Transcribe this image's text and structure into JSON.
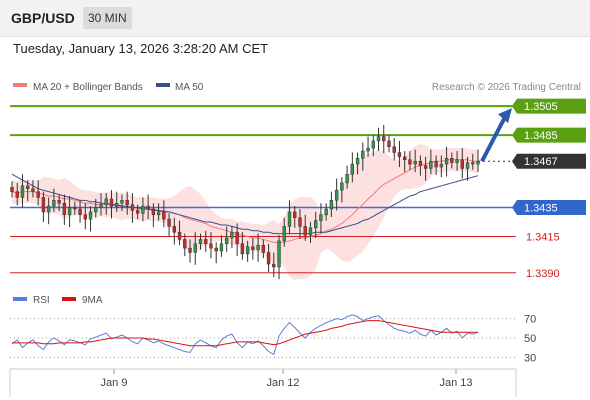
{
  "header": {
    "symbol": "GBP/USD",
    "timeframe": "30 MIN"
  },
  "timestamp": "Tuesday, January 13, 2026 3:28:20 AM CET",
  "copyright": "Research © 2026 Trading Central",
  "colors": {
    "resistance": "#5aa012",
    "support_line": "#3b6fd9",
    "support_label": "#3366cc",
    "target_red": "#d42020",
    "current_label": "#333333",
    "ma20": "#ef7b7b",
    "band_fill": "#fcd7d7",
    "ma50": "#3a4f8e",
    "up_candle": "#2e9b4b",
    "down_candle": "#cc2a2a",
    "rsi": "#5b7fd6",
    "rsi_ma": "#dd1111",
    "arrow": "#2d5aa8"
  },
  "chart_data": [
    {
      "type": "candlestick",
      "title": "GBP/USD",
      "legend": [
        "MA 20 + Bollinger Bands",
        "MA 50"
      ],
      "x_tick_labels": [
        "Jan 9",
        "Jan 12",
        "Jan 13"
      ],
      "y_range": [
        1.3385,
        1.3512
      ],
      "levels": [
        {
          "label": "1.3505",
          "value": 1.3505,
          "kind": "resistance"
        },
        {
          "label": "1.3485",
          "value": 1.3485,
          "kind": "resistance"
        },
        {
          "label": "1.3467",
          "value": 1.3467,
          "kind": "current"
        },
        {
          "label": "1.3435",
          "value": 1.3435,
          "kind": "support"
        },
        {
          "label": "1.3415",
          "value": 1.3415,
          "kind": "target"
        },
        {
          "label": "1.3390",
          "value": 1.339,
          "kind": "target"
        }
      ],
      "close": [
        1.3446,
        1.3442,
        1.345,
        1.3448,
        1.3446,
        1.3442,
        1.3432,
        1.3436,
        1.344,
        1.3438,
        1.343,
        1.3435,
        1.3434,
        1.343,
        1.3427,
        1.3432,
        1.3435,
        1.3437,
        1.3441,
        1.3436,
        1.3438,
        1.344,
        1.3437,
        1.3433,
        1.3431,
        1.3436,
        1.3434,
        1.343,
        1.3432,
        1.3427,
        1.3422,
        1.3418,
        1.3413,
        1.3407,
        1.3404,
        1.341,
        1.3413,
        1.341,
        1.3407,
        1.3405,
        1.341,
        1.3414,
        1.3418,
        1.341,
        1.3403,
        1.3408,
        1.3406,
        1.3409,
        1.3404,
        1.3396,
        1.3394,
        1.3412,
        1.3422,
        1.3432,
        1.3428,
        1.3422,
        1.3416,
        1.3421,
        1.3426,
        1.343,
        1.3434,
        1.344,
        1.3447,
        1.3452,
        1.3458,
        1.3465,
        1.3469,
        1.3474,
        1.3476,
        1.3481,
        1.3484,
        1.3481,
        1.3477,
        1.3473,
        1.347,
        1.3468,
        1.3465,
        1.3467,
        1.3464,
        1.3462,
        1.3467,
        1.3463,
        1.3465,
        1.3469,
        1.3466,
        1.3468,
        1.3462,
        1.3466,
        1.3465,
        1.3467
      ],
      "ma20": [
        1.3446,
        1.3445,
        1.3446,
        1.3446,
        1.3446,
        1.3445,
        1.3444,
        1.3443,
        1.3443,
        1.3442,
        1.3441,
        1.3441,
        1.344,
        1.3439,
        1.3438,
        1.3438,
        1.3437,
        1.3437,
        1.3437,
        1.3437,
        1.3436,
        1.3436,
        1.3436,
        1.3435,
        1.3434,
        1.3434,
        1.3434,
        1.3434,
        1.3433,
        1.3433,
        1.3432,
        1.3431,
        1.343,
        1.3428,
        1.3427,
        1.3426,
        1.3425,
        1.3424,
        1.3422,
        1.3421,
        1.342,
        1.3419,
        1.3418,
        1.3417,
        1.3416,
        1.3415,
        1.3414,
        1.3414,
        1.3413,
        1.3412,
        1.3411,
        1.3411,
        1.3411,
        1.3412,
        1.3413,
        1.3414,
        1.3414,
        1.3415,
        1.3416,
        1.3417,
        1.3419,
        1.342,
        1.3422,
        1.3424,
        1.3427,
        1.343,
        1.3434,
        1.3437,
        1.3441,
        1.3444,
        1.3448,
        1.3451,
        1.3453,
        1.3455,
        1.3457,
        1.3459,
        1.3461,
        1.3463,
        1.3464,
        1.3465,
        1.3466,
        1.3467,
        1.3467,
        1.3468,
        1.3468,
        1.3468,
        1.3468,
        1.3468,
        1.3467,
        1.3467
      ],
      "ma50": [
        1.3458,
        1.3456,
        1.3454,
        1.3452,
        1.345,
        1.3448,
        1.3447,
        1.3446,
        1.3445,
        1.3444,
        1.3443,
        1.3442,
        1.3441,
        1.344,
        1.344,
        1.3439,
        1.3439,
        1.3438,
        1.3438,
        1.3437,
        1.3437,
        1.3436,
        1.3436,
        1.3435,
        1.3435,
        1.3434,
        1.3434,
        1.3433,
        1.3433,
        1.3432,
        1.3432,
        1.3431,
        1.343,
        1.3429,
        1.3428,
        1.3427,
        1.3426,
        1.3425,
        1.3425,
        1.3424,
        1.3423,
        1.3423,
        1.3422,
        1.3421,
        1.342,
        1.342,
        1.3419,
        1.3419,
        1.3418,
        1.3418,
        1.3417,
        1.3417,
        1.3417,
        1.3417,
        1.3417,
        1.3417,
        1.3417,
        1.3417,
        1.3418,
        1.3418,
        1.3418,
        1.3419,
        1.342,
        1.3421,
        1.3422,
        1.3423,
        1.3424,
        1.3426,
        1.3427,
        1.3429,
        1.3431,
        1.3433,
        1.3435,
        1.3437,
        1.3439,
        1.3441,
        1.3443,
        1.3444,
        1.3446,
        1.3447,
        1.3448,
        1.3449,
        1.345,
        1.3451,
        1.3452,
        1.3453,
        1.3454,
        1.3455,
        1.3456,
        1.3457
      ]
    },
    {
      "type": "line",
      "legend": [
        "RSI",
        "9MA"
      ],
      "y_tick_labels": [
        "70",
        "50",
        "30"
      ],
      "y_range": [
        20,
        80
      ],
      "reference_lines": [
        70,
        50,
        30
      ],
      "rsi": [
        44,
        48,
        40,
        45,
        48,
        42,
        38,
        46,
        50,
        47,
        43,
        48,
        47,
        45,
        43,
        49,
        51,
        53,
        55,
        49,
        51,
        53,
        50,
        46,
        44,
        50,
        48,
        45,
        47,
        44,
        42,
        40,
        38,
        36,
        35,
        44,
        48,
        45,
        42,
        40,
        48,
        52,
        54,
        45,
        40,
        46,
        44,
        47,
        42,
        36,
        33,
        52,
        60,
        66,
        61,
        55,
        50,
        56,
        60,
        63,
        66,
        68,
        70,
        69,
        72,
        74,
        72,
        68,
        70,
        72,
        73,
        68,
        64,
        60,
        58,
        57,
        55,
        58,
        54,
        52,
        58,
        53,
        56,
        60,
        55,
        57,
        50,
        55,
        54,
        56
      ],
      "rsi_9ma": [
        45,
        45,
        45,
        45,
        45,
        45,
        44,
        44,
        44,
        45,
        45,
        45,
        45,
        45,
        46,
        46,
        47,
        48,
        49,
        50,
        50,
        50,
        50,
        50,
        50,
        50,
        49,
        49,
        48,
        47,
        46,
        45,
        44,
        43,
        42,
        42,
        42,
        42,
        42,
        42,
        43,
        44,
        45,
        46,
        46,
        46,
        46,
        46,
        45,
        44,
        43,
        44,
        46,
        48,
        50,
        52,
        54,
        55,
        56,
        57,
        58,
        60,
        61,
        62,
        64,
        65,
        66,
        67,
        68,
        68,
        68,
        67,
        66,
        65,
        64,
        63,
        62,
        61,
        60,
        59,
        58,
        57,
        56,
        56,
        56,
        56,
        56,
        56,
        56,
        56
      ]
    }
  ]
}
